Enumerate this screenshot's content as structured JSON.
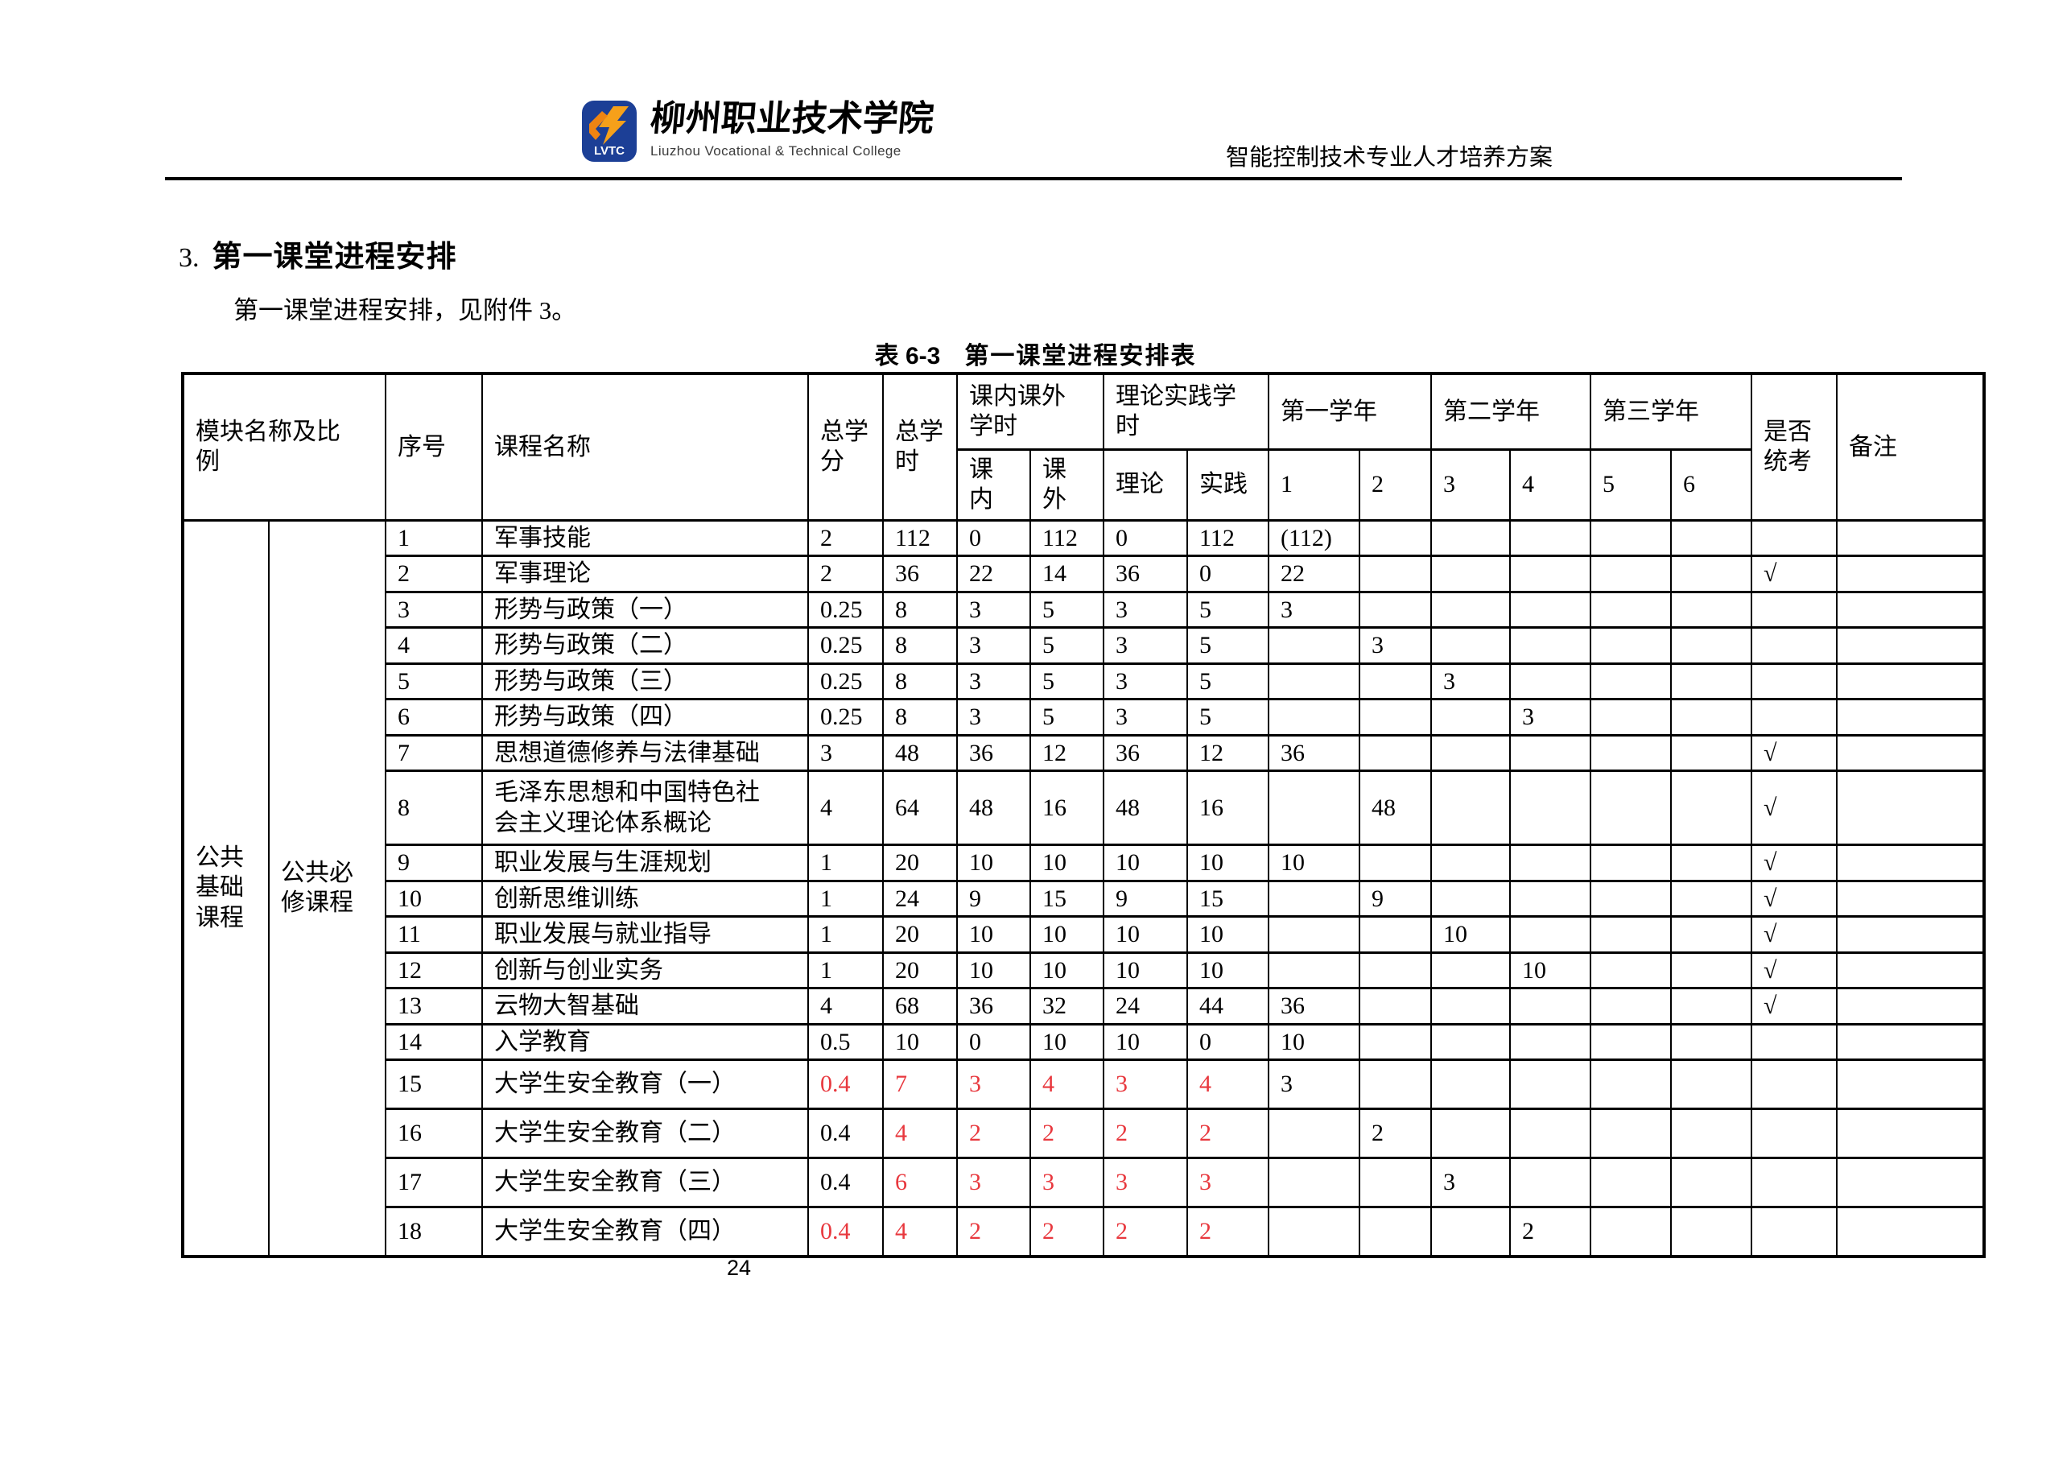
{
  "header": {
    "logo_abbr": "LVTC",
    "logo_cn": "柳州职业技术学院",
    "logo_en": "Liuzhou Vocational & Technical College",
    "doc_title": "智能控制技术专业人才培养方案"
  },
  "section": {
    "number": "3.",
    "title": "第一课堂进程安排"
  },
  "intro": "第一课堂进程安排，见附件 3。",
  "caption": {
    "label": "表 6-3",
    "title": "第一课堂进程安排表"
  },
  "page_number": "24",
  "colors": {
    "accent_red": "#e8383e",
    "logo_blue": "#1c3f96",
    "logo_orange": "#f6a01a"
  },
  "table": {
    "headers": {
      "module": "模块名称及比例",
      "no": "序号",
      "course": "课程名称",
      "credits": "总学分",
      "hours": "总学时",
      "inout": "课内课外学时",
      "in_class": "课内",
      "out_class": "课外",
      "theory_practice": "理论实践学时",
      "theory": "理论",
      "practice": "实践",
      "year1": "第一学年",
      "year2": "第二学年",
      "year3": "第三学年",
      "s1": "1",
      "s2": "2",
      "s3": "3",
      "s4": "4",
      "s5": "5",
      "s6": "6",
      "exam": "是否统考",
      "remark": "备注"
    },
    "module": {
      "group": "公共基础课程",
      "subgroup": "公共必修课程"
    },
    "rows": [
      {
        "no": "1",
        "name": "军事技能",
        "credits": "2",
        "hours": "112",
        "in_class": "0",
        "out_class": "112",
        "theory": "0",
        "practice": "112",
        "s1": "(112)",
        "s2": "",
        "s3": "",
        "s4": "",
        "s5": "",
        "s6": "",
        "exam": "",
        "remark": "",
        "red": []
      },
      {
        "no": "2",
        "name": "军事理论",
        "credits": "2",
        "hours": "36",
        "in_class": "22",
        "out_class": "14",
        "theory": "36",
        "practice": "0",
        "s1": "22",
        "s2": "",
        "s3": "",
        "s4": "",
        "s5": "",
        "s6": "",
        "exam": "√",
        "remark": "",
        "red": []
      },
      {
        "no": "3",
        "name": "形势与政策（一）",
        "credits": "0.25",
        "hours": "8",
        "in_class": "3",
        "out_class": "5",
        "theory": "3",
        "practice": "5",
        "s1": "3",
        "s2": "",
        "s3": "",
        "s4": "",
        "s5": "",
        "s6": "",
        "exam": "",
        "remark": "",
        "red": []
      },
      {
        "no": "4",
        "name": "形势与政策（二）",
        "credits": "0.25",
        "hours": "8",
        "in_class": "3",
        "out_class": "5",
        "theory": "3",
        "practice": "5",
        "s1": "",
        "s2": "3",
        "s3": "",
        "s4": "",
        "s5": "",
        "s6": "",
        "exam": "",
        "remark": "",
        "red": []
      },
      {
        "no": "5",
        "name": "形势与政策（三）",
        "credits": "0.25",
        "hours": "8",
        "in_class": "3",
        "out_class": "5",
        "theory": "3",
        "practice": "5",
        "s1": "",
        "s2": "",
        "s3": "3",
        "s4": "",
        "s5": "",
        "s6": "",
        "exam": "",
        "remark": "",
        "red": []
      },
      {
        "no": "6",
        "name": "形势与政策（四）",
        "credits": "0.25",
        "hours": "8",
        "in_class": "3",
        "out_class": "5",
        "theory": "3",
        "practice": "5",
        "s1": "",
        "s2": "",
        "s3": "",
        "s4": "3",
        "s5": "",
        "s6": "",
        "exam": "",
        "remark": "",
        "red": []
      },
      {
        "no": "7",
        "name": "思想道德修养与法律基础",
        "credits": "3",
        "hours": "48",
        "in_class": "36",
        "out_class": "12",
        "theory": "36",
        "practice": "12",
        "s1": "36",
        "s2": "",
        "s3": "",
        "s4": "",
        "s5": "",
        "s6": "",
        "exam": "√",
        "remark": "",
        "red": []
      },
      {
        "no": "8",
        "name": "毛泽东思想和中国特色社会主义理论体系概论",
        "credits": "4",
        "hours": "64",
        "in_class": "48",
        "out_class": "16",
        "theory": "48",
        "practice": "16",
        "s1": "",
        "s2": "48",
        "s3": "",
        "s4": "",
        "s5": "",
        "s6": "",
        "exam": "√",
        "remark": "",
        "red": []
      },
      {
        "no": "9",
        "name": "职业发展与生涯规划",
        "credits": "1",
        "hours": "20",
        "in_class": "10",
        "out_class": "10",
        "theory": "10",
        "practice": "10",
        "s1": "10",
        "s2": "",
        "s3": "",
        "s4": "",
        "s5": "",
        "s6": "",
        "exam": "√",
        "remark": "",
        "red": []
      },
      {
        "no": "10",
        "name": "创新思维训练",
        "credits": "1",
        "hours": "24",
        "in_class": "9",
        "out_class": "15",
        "theory": "9",
        "practice": "15",
        "s1": "",
        "s2": "9",
        "s3": "",
        "s4": "",
        "s5": "",
        "s6": "",
        "exam": "√",
        "remark": "",
        "red": []
      },
      {
        "no": "11",
        "name": "职业发展与就业指导",
        "credits": "1",
        "hours": "20",
        "in_class": "10",
        "out_class": "10",
        "theory": "10",
        "practice": "10",
        "s1": "",
        "s2": "",
        "s3": "10",
        "s4": "",
        "s5": "",
        "s6": "",
        "exam": "√",
        "remark": "",
        "red": []
      },
      {
        "no": "12",
        "name": "创新与创业实务",
        "credits": "1",
        "hours": "20",
        "in_class": "10",
        "out_class": "10",
        "theory": "10",
        "practice": "10",
        "s1": "",
        "s2": "",
        "s3": "",
        "s4": "10",
        "s5": "",
        "s6": "",
        "exam": "√",
        "remark": "",
        "red": []
      },
      {
        "no": "13",
        "name": "云物大智基础",
        "credits": "4",
        "hours": "68",
        "in_class": "36",
        "out_class": "32",
        "theory": "24",
        "practice": "44",
        "s1": "36",
        "s2": "",
        "s3": "",
        "s4": "",
        "s5": "",
        "s6": "",
        "exam": "√",
        "remark": "",
        "red": []
      },
      {
        "no": "14",
        "name": "入学教育",
        "credits": "0.5",
        "hours": "10",
        "in_class": "0",
        "out_class": "10",
        "theory": "10",
        "practice": "0",
        "s1": "10",
        "s2": "",
        "s3": "",
        "s4": "",
        "s5": "",
        "s6": "",
        "exam": "",
        "remark": "",
        "red": []
      },
      {
        "no": "15",
        "name": "大学生安全教育（一）",
        "credits": "0.4",
        "hours": "7",
        "in_class": "3",
        "out_class": "4",
        "theory": "3",
        "practice": "4",
        "s1": "3",
        "s2": "",
        "s3": "",
        "s4": "",
        "s5": "",
        "s6": "",
        "exam": "",
        "remark": "",
        "red": [
          "credits",
          "hours",
          "in_class",
          "out_class",
          "theory",
          "practice"
        ]
      },
      {
        "no": "16",
        "name": "大学生安全教育（二）",
        "credits": "0.4",
        "hours": "4",
        "in_class": "2",
        "out_class": "2",
        "theory": "2",
        "practice": "2",
        "s1": "",
        "s2": "2",
        "s3": "",
        "s4": "",
        "s5": "",
        "s6": "",
        "exam": "",
        "remark": "",
        "red": [
          "hours",
          "in_class",
          "out_class",
          "theory",
          "practice"
        ]
      },
      {
        "no": "17",
        "name": "大学生安全教育（三）",
        "credits": "0.4",
        "hours": "6",
        "in_class": "3",
        "out_class": "3",
        "theory": "3",
        "practice": "3",
        "s1": "",
        "s2": "",
        "s3": "3",
        "s4": "",
        "s5": "",
        "s6": "",
        "exam": "",
        "remark": "",
        "red": [
          "hours",
          "in_class",
          "out_class",
          "theory",
          "practice"
        ]
      },
      {
        "no": "18",
        "name": "大学生安全教育（四）",
        "credits": "0.4",
        "hours": "4",
        "in_class": "2",
        "out_class": "2",
        "theory": "2",
        "practice": "2",
        "s1": "",
        "s2": "",
        "s3": "",
        "s4": "2",
        "s5": "",
        "s6": "",
        "exam": "",
        "remark": "",
        "red": [
          "credits",
          "hours",
          "in_class",
          "out_class",
          "theory",
          "practice"
        ]
      }
    ]
  }
}
